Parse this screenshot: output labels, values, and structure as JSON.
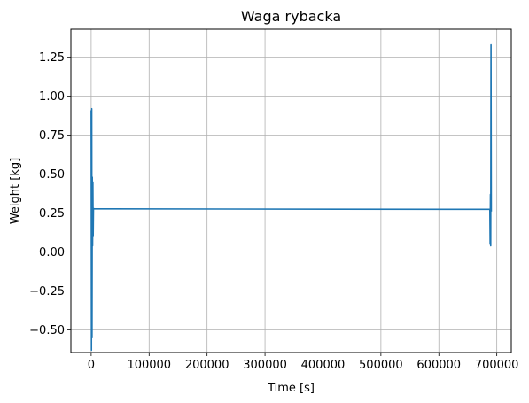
{
  "chart_data": {
    "type": "line",
    "title": "Waga rybacka",
    "xlabel": "Time [s]",
    "ylabel": "Weight [kg]",
    "xlim": [
      -35000,
      725000
    ],
    "ylim": [
      -0.645,
      1.43
    ],
    "xticks": [
      0,
      100000,
      200000,
      300000,
      400000,
      500000,
      600000,
      700000
    ],
    "xtick_labels": [
      "0",
      "100000",
      "200000",
      "300000",
      "400000",
      "500000",
      "600000",
      "700000"
    ],
    "yticks": [
      -0.5,
      -0.25,
      0.0,
      0.25,
      0.5,
      0.75,
      1.0,
      1.25
    ],
    "ytick_labels": [
      "−0.50",
      "−0.25",
      "0.00",
      "0.25",
      "0.50",
      "0.75",
      "1.00",
      "1.25"
    ],
    "grid": true,
    "series": [
      {
        "color": "#1f77b4",
        "x": [
          0,
          500,
          1000,
          1500,
          2000,
          2500,
          3000,
          3500,
          4000,
          5000,
          688000,
          688500,
          689000,
          689500,
          690000,
          690500
        ],
        "y": [
          0.91,
          -0.63,
          0.92,
          -0.55,
          0.48,
          0.04,
          0.45,
          0.1,
          0.28,
          0.277,
          0.274,
          0.05,
          0.37,
          0.04,
          1.33,
          0.26
        ]
      }
    ]
  }
}
